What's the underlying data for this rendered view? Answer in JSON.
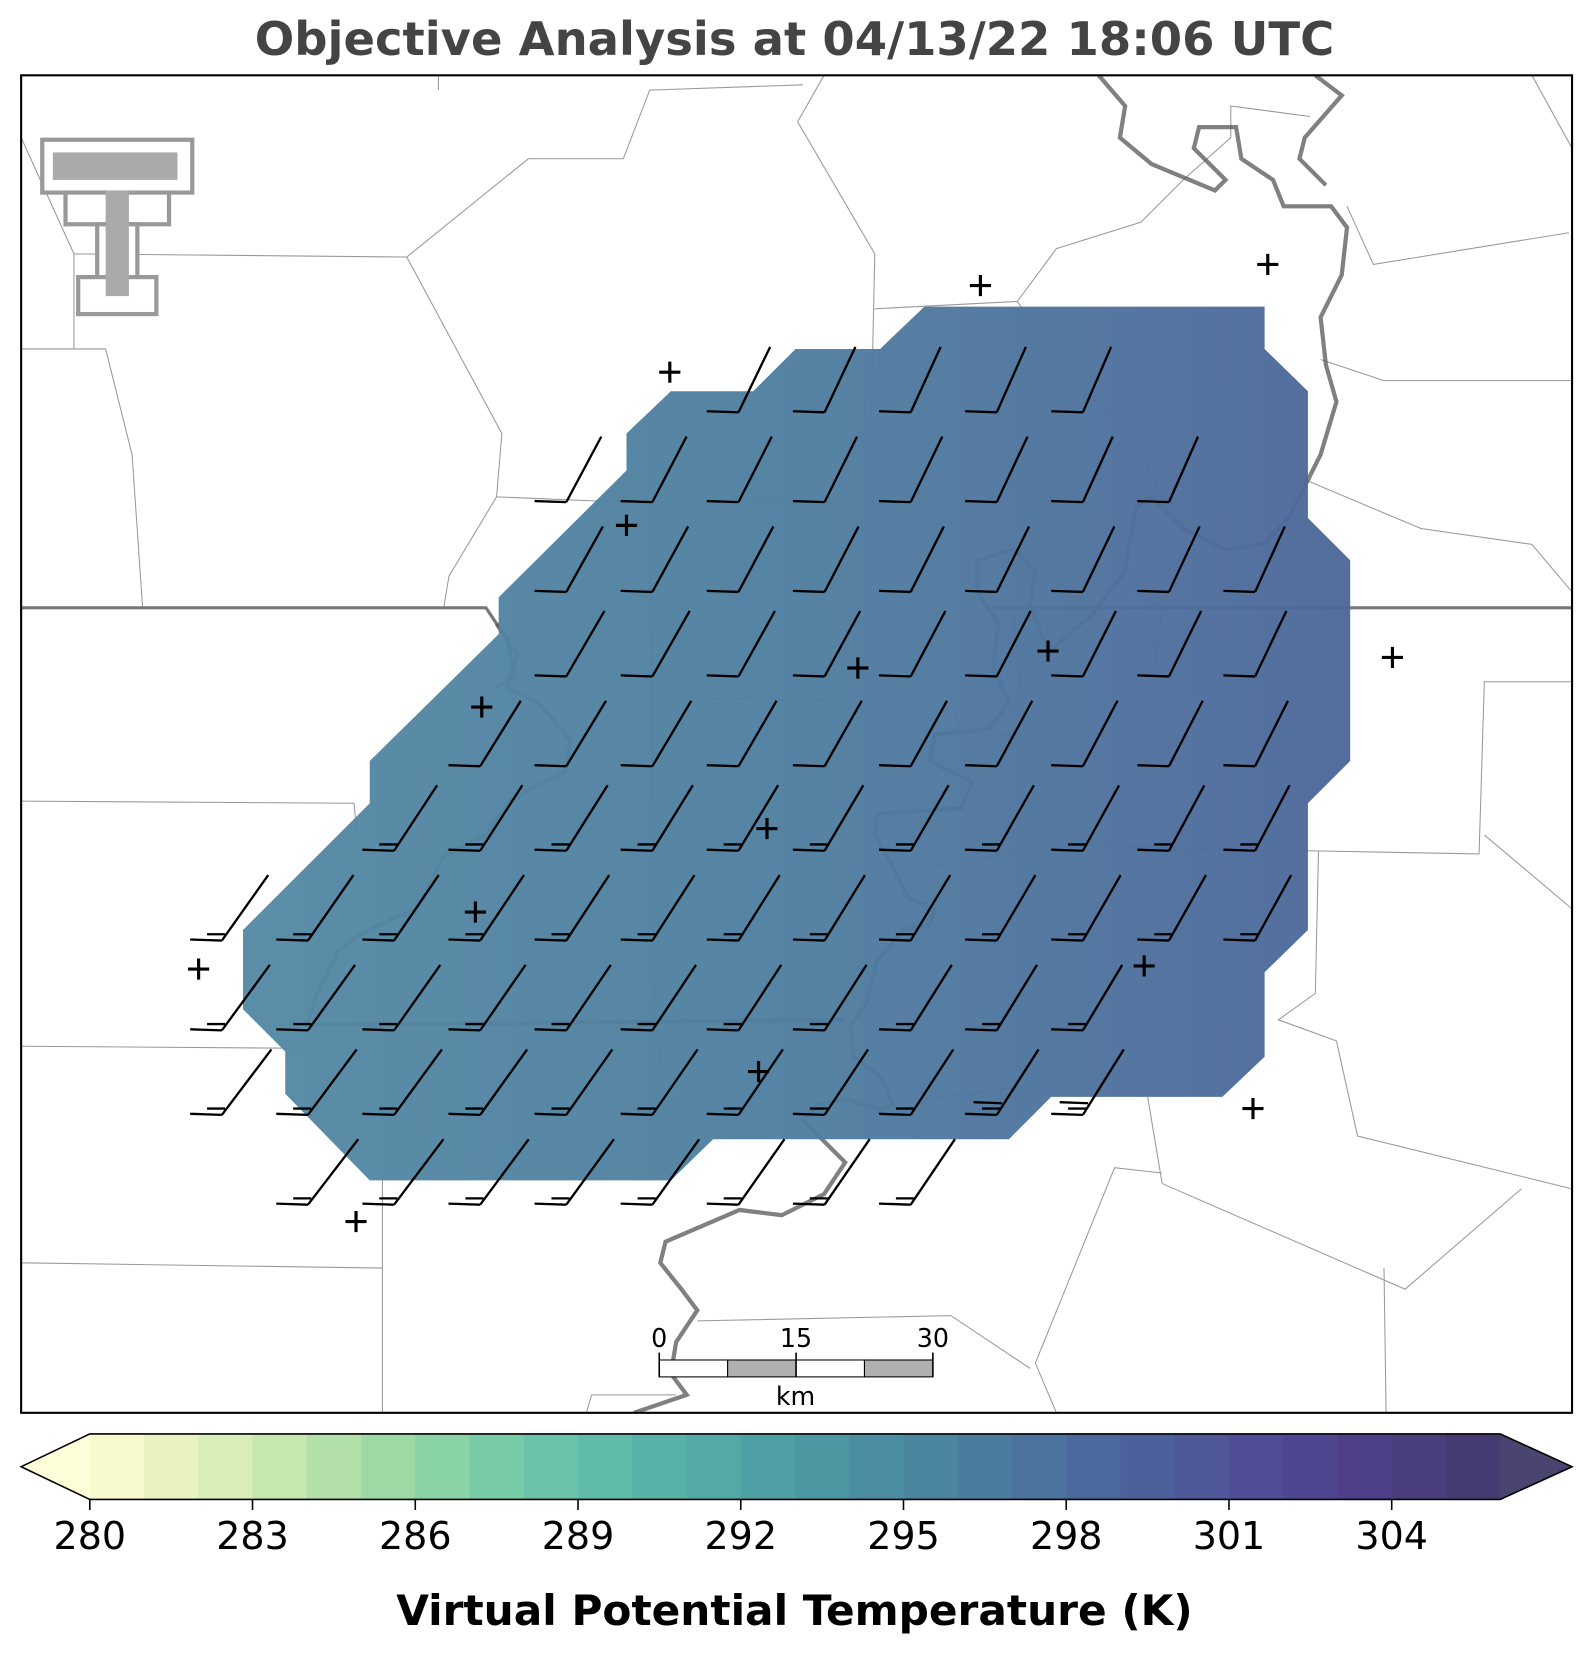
{
  "title": "Objective Analysis at 04/13/22 18:06 UTC",
  "colorbar": {
    "label": "Virtual Potential Temperature (K)",
    "range": [
      280,
      306
    ],
    "ticks": [
      280,
      283,
      286,
      289,
      292,
      295,
      298,
      301,
      304
    ],
    "colors": [
      "#f8f9cc",
      "#eaf3c0",
      "#d9eeb6",
      "#c6e7ae",
      "#b2e0a8",
      "#9dd9a4",
      "#89d3a5",
      "#78cba7",
      "#6ac3a8",
      "#60bba8",
      "#58b2a7",
      "#52a9a6",
      "#4fa0a4",
      "#4d97a2",
      "#4c8ea1",
      "#4b859f",
      "#4b7c9e",
      "#4b739d",
      "#4b699c",
      "#4c609b",
      "#4d5799",
      "#4e4d95",
      "#4e4690",
      "#4d4089",
      "#4a3f7c",
      "#463a72"
    ],
    "extend_colors": [
      "#fdfed8",
      "#4a4470"
    ]
  },
  "scale_bar": {
    "ticks": [
      0,
      15,
      30
    ],
    "unit": "km"
  }
}
